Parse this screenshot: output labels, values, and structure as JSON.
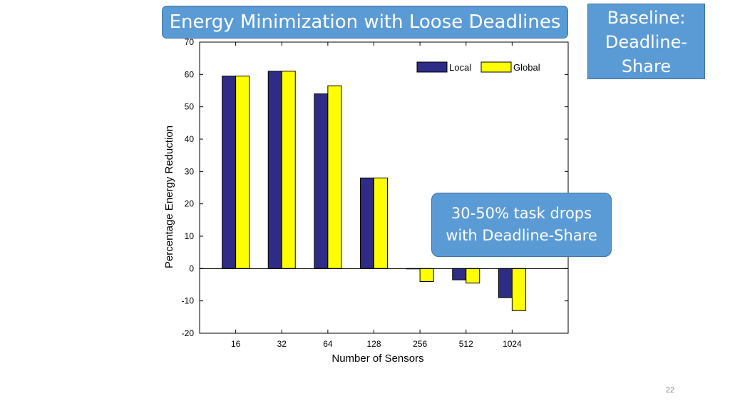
{
  "slide": {
    "title": "Energy Minimization with Loose Deadlines",
    "baseline_lines": [
      "Baseline:",
      "Deadline-",
      "Share"
    ],
    "note_lines": [
      "30-50% task drops",
      "with Deadline-Share"
    ],
    "page_number": "22"
  },
  "colors": {
    "box_fill": "#5b9bd5",
    "local": "#2e2c84",
    "global": "#ffff00"
  },
  "chart_data": {
    "type": "bar",
    "title": "",
    "xlabel": "Number of Sensors",
    "ylabel": "Percentage Energy Reduction",
    "categories": [
      "16",
      "32",
      "64",
      "128",
      "256",
      "512",
      "1024"
    ],
    "series": [
      {
        "name": "Local",
        "values": [
          59.5,
          61,
          54,
          28,
          0,
          -3.5,
          -9
        ]
      },
      {
        "name": "Global",
        "values": [
          59.5,
          61,
          56.5,
          28,
          -4,
          -4.5,
          -13
        ]
      }
    ],
    "ylim": [
      -20,
      70
    ],
    "yticks": [
      "-20",
      "-10",
      "0",
      "10",
      "20",
      "30",
      "40",
      "50",
      "60",
      "70"
    ],
    "legend_position": "top-right",
    "grid": false
  }
}
